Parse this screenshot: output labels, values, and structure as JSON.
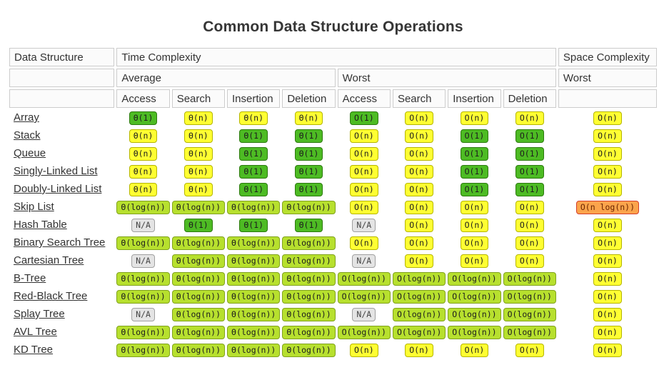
{
  "title": "Common Data Structure Operations",
  "header": {
    "data_structure": "Data Structure",
    "time_complexity": "Time Complexity",
    "space_complexity": "Space Complexity",
    "average": "Average",
    "worst_time": "Worst",
    "worst_space": "Worst",
    "ops": [
      "Access",
      "Search",
      "Insertion",
      "Deletion",
      "Access",
      "Search",
      "Insertion",
      "Deletion"
    ]
  },
  "colors": {
    "green": "#4dbb23",
    "yellow": "#ffff32",
    "yellowgreen": "#b7e02e",
    "orange": "#fba44c",
    "gray": "#e4e4e4",
    "header_border": "#cccccc",
    "header_bg": "#fbfbfb",
    "text": "#333333"
  },
  "rows": [
    {
      "name": "Array",
      "cells": [
        {
          "text": "Θ(1)",
          "tone": "green"
        },
        {
          "text": "Θ(n)",
          "tone": "yellow"
        },
        {
          "text": "Θ(n)",
          "tone": "yellow"
        },
        {
          "text": "Θ(n)",
          "tone": "yellow"
        },
        {
          "text": "O(1)",
          "tone": "green"
        },
        {
          "text": "O(n)",
          "tone": "yellow"
        },
        {
          "text": "O(n)",
          "tone": "yellow"
        },
        {
          "text": "O(n)",
          "tone": "yellow"
        },
        {
          "text": "O(n)",
          "tone": "yellow"
        }
      ]
    },
    {
      "name": "Stack",
      "cells": [
        {
          "text": "Θ(n)",
          "tone": "yellow"
        },
        {
          "text": "Θ(n)",
          "tone": "yellow"
        },
        {
          "text": "Θ(1)",
          "tone": "green"
        },
        {
          "text": "Θ(1)",
          "tone": "green"
        },
        {
          "text": "O(n)",
          "tone": "yellow"
        },
        {
          "text": "O(n)",
          "tone": "yellow"
        },
        {
          "text": "O(1)",
          "tone": "green"
        },
        {
          "text": "O(1)",
          "tone": "green"
        },
        {
          "text": "O(n)",
          "tone": "yellow"
        }
      ]
    },
    {
      "name": "Queue",
      "cells": [
        {
          "text": "Θ(n)",
          "tone": "yellow"
        },
        {
          "text": "Θ(n)",
          "tone": "yellow"
        },
        {
          "text": "Θ(1)",
          "tone": "green"
        },
        {
          "text": "Θ(1)",
          "tone": "green"
        },
        {
          "text": "O(n)",
          "tone": "yellow"
        },
        {
          "text": "O(n)",
          "tone": "yellow"
        },
        {
          "text": "O(1)",
          "tone": "green"
        },
        {
          "text": "O(1)",
          "tone": "green"
        },
        {
          "text": "O(n)",
          "tone": "yellow"
        }
      ]
    },
    {
      "name": "Singly-Linked List",
      "cells": [
        {
          "text": "Θ(n)",
          "tone": "yellow"
        },
        {
          "text": "Θ(n)",
          "tone": "yellow"
        },
        {
          "text": "Θ(1)",
          "tone": "green"
        },
        {
          "text": "Θ(1)",
          "tone": "green"
        },
        {
          "text": "O(n)",
          "tone": "yellow"
        },
        {
          "text": "O(n)",
          "tone": "yellow"
        },
        {
          "text": "O(1)",
          "tone": "green"
        },
        {
          "text": "O(1)",
          "tone": "green"
        },
        {
          "text": "O(n)",
          "tone": "yellow"
        }
      ]
    },
    {
      "name": "Doubly-Linked List",
      "cells": [
        {
          "text": "Θ(n)",
          "tone": "yellow"
        },
        {
          "text": "Θ(n)",
          "tone": "yellow"
        },
        {
          "text": "Θ(1)",
          "tone": "green"
        },
        {
          "text": "Θ(1)",
          "tone": "green"
        },
        {
          "text": "O(n)",
          "tone": "yellow"
        },
        {
          "text": "O(n)",
          "tone": "yellow"
        },
        {
          "text": "O(1)",
          "tone": "green"
        },
        {
          "text": "O(1)",
          "tone": "green"
        },
        {
          "text": "O(n)",
          "tone": "yellow"
        }
      ]
    },
    {
      "name": "Skip List",
      "cells": [
        {
          "text": "Θ(log(n))",
          "tone": "yellowgreen"
        },
        {
          "text": "Θ(log(n))",
          "tone": "yellowgreen"
        },
        {
          "text": "Θ(log(n))",
          "tone": "yellowgreen"
        },
        {
          "text": "Θ(log(n))",
          "tone": "yellowgreen"
        },
        {
          "text": "O(n)",
          "tone": "yellow"
        },
        {
          "text": "O(n)",
          "tone": "yellow"
        },
        {
          "text": "O(n)",
          "tone": "yellow"
        },
        {
          "text": "O(n)",
          "tone": "yellow"
        },
        {
          "text": "O(n log(n))",
          "tone": "orange"
        }
      ]
    },
    {
      "name": "Hash Table",
      "cells": [
        {
          "text": "N/A",
          "tone": "gray"
        },
        {
          "text": "Θ(1)",
          "tone": "green"
        },
        {
          "text": "Θ(1)",
          "tone": "green"
        },
        {
          "text": "Θ(1)",
          "tone": "green"
        },
        {
          "text": "N/A",
          "tone": "gray"
        },
        {
          "text": "O(n)",
          "tone": "yellow"
        },
        {
          "text": "O(n)",
          "tone": "yellow"
        },
        {
          "text": "O(n)",
          "tone": "yellow"
        },
        {
          "text": "O(n)",
          "tone": "yellow"
        }
      ]
    },
    {
      "name": "Binary Search Tree",
      "cells": [
        {
          "text": "Θ(log(n))",
          "tone": "yellowgreen"
        },
        {
          "text": "Θ(log(n))",
          "tone": "yellowgreen"
        },
        {
          "text": "Θ(log(n))",
          "tone": "yellowgreen"
        },
        {
          "text": "Θ(log(n))",
          "tone": "yellowgreen"
        },
        {
          "text": "O(n)",
          "tone": "yellow"
        },
        {
          "text": "O(n)",
          "tone": "yellow"
        },
        {
          "text": "O(n)",
          "tone": "yellow"
        },
        {
          "text": "O(n)",
          "tone": "yellow"
        },
        {
          "text": "O(n)",
          "tone": "yellow"
        }
      ]
    },
    {
      "name": "Cartesian Tree",
      "cells": [
        {
          "text": "N/A",
          "tone": "gray"
        },
        {
          "text": "Θ(log(n))",
          "tone": "yellowgreen"
        },
        {
          "text": "Θ(log(n))",
          "tone": "yellowgreen"
        },
        {
          "text": "Θ(log(n))",
          "tone": "yellowgreen"
        },
        {
          "text": "N/A",
          "tone": "gray"
        },
        {
          "text": "O(n)",
          "tone": "yellow"
        },
        {
          "text": "O(n)",
          "tone": "yellow"
        },
        {
          "text": "O(n)",
          "tone": "yellow"
        },
        {
          "text": "O(n)",
          "tone": "yellow"
        }
      ]
    },
    {
      "name": "B-Tree",
      "cells": [
        {
          "text": "Θ(log(n))",
          "tone": "yellowgreen"
        },
        {
          "text": "Θ(log(n))",
          "tone": "yellowgreen"
        },
        {
          "text": "Θ(log(n))",
          "tone": "yellowgreen"
        },
        {
          "text": "Θ(log(n))",
          "tone": "yellowgreen"
        },
        {
          "text": "O(log(n))",
          "tone": "yellowgreen"
        },
        {
          "text": "O(log(n))",
          "tone": "yellowgreen"
        },
        {
          "text": "O(log(n))",
          "tone": "yellowgreen"
        },
        {
          "text": "O(log(n))",
          "tone": "yellowgreen"
        },
        {
          "text": "O(n)",
          "tone": "yellow"
        }
      ]
    },
    {
      "name": "Red-Black Tree",
      "cells": [
        {
          "text": "Θ(log(n))",
          "tone": "yellowgreen"
        },
        {
          "text": "Θ(log(n))",
          "tone": "yellowgreen"
        },
        {
          "text": "Θ(log(n))",
          "tone": "yellowgreen"
        },
        {
          "text": "Θ(log(n))",
          "tone": "yellowgreen"
        },
        {
          "text": "O(log(n))",
          "tone": "yellowgreen"
        },
        {
          "text": "O(log(n))",
          "tone": "yellowgreen"
        },
        {
          "text": "O(log(n))",
          "tone": "yellowgreen"
        },
        {
          "text": "O(log(n))",
          "tone": "yellowgreen"
        },
        {
          "text": "O(n)",
          "tone": "yellow"
        }
      ]
    },
    {
      "name": "Splay Tree",
      "cells": [
        {
          "text": "N/A",
          "tone": "gray"
        },
        {
          "text": "Θ(log(n))",
          "tone": "yellowgreen"
        },
        {
          "text": "Θ(log(n))",
          "tone": "yellowgreen"
        },
        {
          "text": "Θ(log(n))",
          "tone": "yellowgreen"
        },
        {
          "text": "N/A",
          "tone": "gray"
        },
        {
          "text": "O(log(n))",
          "tone": "yellowgreen"
        },
        {
          "text": "O(log(n))",
          "tone": "yellowgreen"
        },
        {
          "text": "O(log(n))",
          "tone": "yellowgreen"
        },
        {
          "text": "O(n)",
          "tone": "yellow"
        }
      ]
    },
    {
      "name": "AVL Tree",
      "cells": [
        {
          "text": "Θ(log(n))",
          "tone": "yellowgreen"
        },
        {
          "text": "Θ(log(n))",
          "tone": "yellowgreen"
        },
        {
          "text": "Θ(log(n))",
          "tone": "yellowgreen"
        },
        {
          "text": "Θ(log(n))",
          "tone": "yellowgreen"
        },
        {
          "text": "O(log(n))",
          "tone": "yellowgreen"
        },
        {
          "text": "O(log(n))",
          "tone": "yellowgreen"
        },
        {
          "text": "O(log(n))",
          "tone": "yellowgreen"
        },
        {
          "text": "O(log(n))",
          "tone": "yellowgreen"
        },
        {
          "text": "O(n)",
          "tone": "yellow"
        }
      ]
    },
    {
      "name": "KD Tree",
      "cells": [
        {
          "text": "Θ(log(n))",
          "tone": "yellowgreen"
        },
        {
          "text": "Θ(log(n))",
          "tone": "yellowgreen"
        },
        {
          "text": "Θ(log(n))",
          "tone": "yellowgreen"
        },
        {
          "text": "Θ(log(n))",
          "tone": "yellowgreen"
        },
        {
          "text": "O(n)",
          "tone": "yellow"
        },
        {
          "text": "O(n)",
          "tone": "yellow"
        },
        {
          "text": "O(n)",
          "tone": "yellow"
        },
        {
          "text": "O(n)",
          "tone": "yellow"
        },
        {
          "text": "O(n)",
          "tone": "yellow"
        }
      ]
    }
  ]
}
